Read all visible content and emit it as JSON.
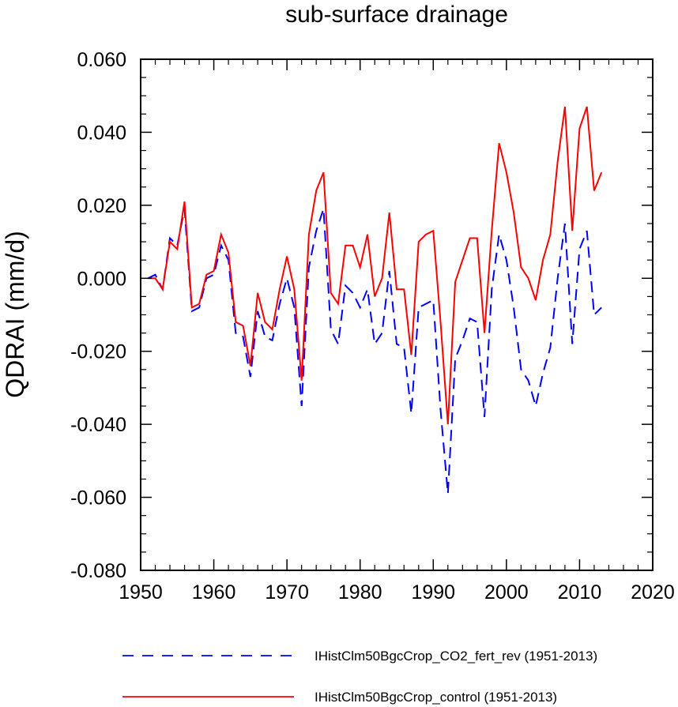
{
  "chart_data": {
    "type": "line",
    "title": "sub-surface drainage",
    "xlabel": "",
    "ylabel": "QDRAI  (mm/d)",
    "xlim": [
      1950,
      2020
    ],
    "ylim": [
      -0.08,
      0.06
    ],
    "xticks": [
      1950,
      1960,
      1970,
      1980,
      1990,
      2000,
      2010,
      2020
    ],
    "xtick_labels": [
      "1950",
      "1960",
      "1970",
      "1980",
      "1990",
      "2000",
      "2010",
      "2020"
    ],
    "yticks": [
      -0.08,
      -0.06,
      -0.04,
      -0.02,
      0.0,
      0.02,
      0.04,
      0.06
    ],
    "ytick_labels": [
      "-0.080",
      "-0.060",
      "-0.040",
      "-0.020",
      "0.000",
      "0.020",
      "0.040",
      "0.060"
    ],
    "grid": false,
    "legend_position": "bottom",
    "x": [
      1951,
      1952,
      1953,
      1954,
      1955,
      1956,
      1957,
      1958,
      1959,
      1960,
      1961,
      1962,
      1963,
      1964,
      1965,
      1966,
      1967,
      1968,
      1969,
      1970,
      1971,
      1972,
      1973,
      1974,
      1975,
      1976,
      1977,
      1978,
      1979,
      1980,
      1981,
      1982,
      1983,
      1984,
      1985,
      1986,
      1987,
      1988,
      1989,
      1990,
      1991,
      1992,
      1993,
      1994,
      1995,
      1996,
      1997,
      1998,
      1999,
      2000,
      2001,
      2002,
      2003,
      2004,
      2005,
      2006,
      2007,
      2008,
      2009,
      2010,
      2011,
      2012,
      2013
    ],
    "series": [
      {
        "name": "IHistClm50BgcCrop_CO2_fert_rev (1951-2013)",
        "color": "#0000ff",
        "style": "dashed",
        "values": [
          0.0,
          0.001,
          -0.003,
          0.011,
          0.009,
          0.019,
          -0.009,
          -0.008,
          0.0,
          0.001,
          0.009,
          0.005,
          -0.015,
          -0.016,
          -0.027,
          -0.009,
          -0.016,
          -0.017,
          -0.007,
          0.0,
          -0.008,
          -0.035,
          0.003,
          0.013,
          0.019,
          -0.014,
          -0.018,
          -0.002,
          -0.004,
          -0.008,
          -0.003,
          -0.018,
          -0.015,
          0.002,
          -0.018,
          -0.019,
          -0.037,
          -0.008,
          -0.007,
          -0.006,
          -0.036,
          -0.059,
          -0.022,
          -0.017,
          -0.011,
          -0.012,
          -0.038,
          -0.003,
          0.012,
          0.005,
          -0.008,
          -0.025,
          -0.028,
          -0.035,
          -0.026,
          -0.019,
          0.0,
          0.015,
          -0.018,
          0.008,
          0.013,
          -0.01,
          -0.008
        ]
      },
      {
        "name": "IHistClm50BgcCrop_control (1951-2013)",
        "color": "#ff0000",
        "style": "solid",
        "values": [
          0.0,
          0.0,
          -0.003,
          0.01,
          0.008,
          0.021,
          -0.008,
          -0.007,
          0.001,
          0.002,
          0.012,
          0.007,
          -0.012,
          -0.013,
          -0.024,
          -0.004,
          -0.012,
          -0.014,
          -0.003,
          0.006,
          -0.003,
          -0.028,
          0.012,
          0.024,
          0.029,
          -0.004,
          -0.007,
          0.009,
          0.009,
          0.003,
          0.012,
          -0.005,
          0.0,
          0.018,
          -0.003,
          -0.003,
          -0.021,
          0.01,
          0.012,
          0.013,
          -0.012,
          -0.04,
          -0.001,
          0.005,
          0.011,
          0.011,
          -0.015,
          0.013,
          0.037,
          0.029,
          0.018,
          0.003,
          0.0,
          -0.006,
          0.005,
          0.012,
          0.032,
          0.047,
          0.013,
          0.041,
          0.047,
          0.024,
          0.029
        ]
      }
    ]
  }
}
